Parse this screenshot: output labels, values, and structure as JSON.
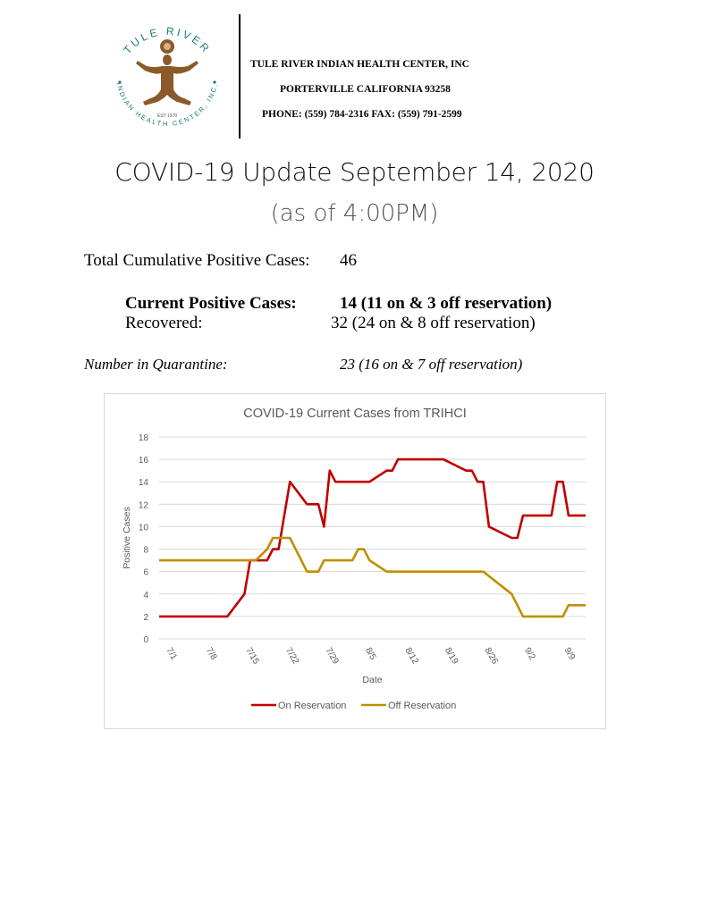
{
  "header": {
    "logo_text_top": "TULE RIVER",
    "logo_text_bottom": "INDIAN HEALTH CENTER, INC.",
    "logo_est": "EST 1970",
    "org_name": "TULE RIVER INDIAN HEALTH CENTER, INC",
    "city": "PORTERVILLE CALIFORNIA 93258",
    "phone_fax": "PHONE: (559) 784-2316 FAX: (559) 791-2599"
  },
  "title": "COVID-19 Update September 14, 2020",
  "subtitle": "(as of 4:00PM)",
  "stats": {
    "total_label": "Total Cumulative Positive Cases:",
    "total_value": "46",
    "current_label": "Current Positive Cases:",
    "current_value": "14 (11 on & 3 off reservation)",
    "recovered_label": "Recovered:",
    "recovered_value": "32 (24 on & 8 off reservation)",
    "quarantine_label": "Number in Quarantine:",
    "quarantine_value": "23 (16 on & 7 off reservation)"
  },
  "colors": {
    "on": "#c00000",
    "off": "#bf9000",
    "grid": "#d9d9d9",
    "axis_text": "#595959"
  },
  "chart_data": {
    "type": "line",
    "title": "COVID-19 Current Cases from TRIHCI",
    "xlabel": "Date",
    "ylabel": "Positive Cases",
    "ylim": [
      0,
      18
    ],
    "yticks": [
      0,
      2,
      4,
      6,
      8,
      10,
      12,
      14,
      16,
      18
    ],
    "xticks": [
      "7/1",
      "7/8",
      "7/15",
      "7/22",
      "7/29",
      "8/5",
      "8/12",
      "8/19",
      "8/26",
      "9/2",
      "9/9"
    ],
    "xlim_days": [
      0,
      75
    ],
    "grid": true,
    "legend_position": "bottom",
    "series": [
      {
        "name": "On Reservation",
        "points": [
          [
            0,
            2
          ],
          [
            12,
            2
          ],
          [
            15,
            4
          ],
          [
            16,
            7
          ],
          [
            19,
            7
          ],
          [
            20,
            8
          ],
          [
            21,
            8
          ],
          [
            23,
            14
          ],
          [
            26,
            12
          ],
          [
            28,
            12
          ],
          [
            29,
            10
          ],
          [
            30,
            15
          ],
          [
            31,
            14
          ],
          [
            37,
            14
          ],
          [
            40,
            15
          ],
          [
            41,
            15
          ],
          [
            42,
            16
          ],
          [
            50,
            16
          ],
          [
            54,
            15
          ],
          [
            55,
            15
          ],
          [
            56,
            14
          ],
          [
            57,
            14
          ],
          [
            58,
            10
          ],
          [
            62,
            9
          ],
          [
            63,
            9
          ],
          [
            64,
            11
          ],
          [
            69,
            11
          ],
          [
            70,
            14
          ],
          [
            71,
            14
          ],
          [
            72,
            11
          ],
          [
            75,
            11
          ]
        ]
      },
      {
        "name": "Off Reservation",
        "points": [
          [
            0,
            7
          ],
          [
            17,
            7
          ],
          [
            19,
            8
          ],
          [
            20,
            9
          ],
          [
            23,
            9
          ],
          [
            26,
            6
          ],
          [
            28,
            6
          ],
          [
            29,
            7
          ],
          [
            34,
            7
          ],
          [
            35,
            8
          ],
          [
            36,
            8
          ],
          [
            37,
            7
          ],
          [
            40,
            6
          ],
          [
            57,
            6
          ],
          [
            62,
            4
          ],
          [
            64,
            2
          ],
          [
            71,
            2
          ],
          [
            72,
            3
          ],
          [
            75,
            3
          ]
        ]
      }
    ]
  }
}
